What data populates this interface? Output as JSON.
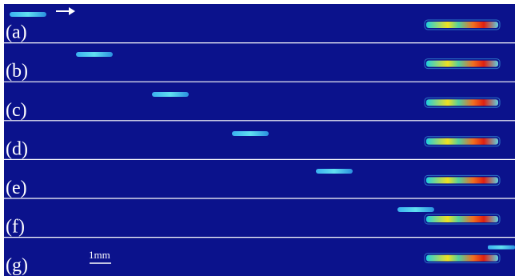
{
  "panels": [
    {
      "label": "(a)"
    },
    {
      "label": "(b)"
    },
    {
      "label": "(c)"
    },
    {
      "label": "(d)"
    },
    {
      "label": "(e)"
    },
    {
      "label": "(f)"
    },
    {
      "label": "(g)"
    }
  ],
  "scale_bar": {
    "label": "1mm"
  }
}
